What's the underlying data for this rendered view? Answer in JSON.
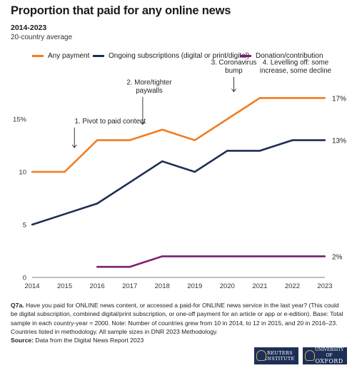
{
  "title": "Proportion that paid for any online news",
  "subtitle": "2014-2023",
  "subsubtitle": "20-country average",
  "legend": [
    {
      "label": "Any payment",
      "color": "#f07d22"
    },
    {
      "label": "Ongoing subscriptions (digital or print/digital)",
      "color": "#1d2f55"
    },
    {
      "label": "Donation/contribution",
      "color": "#7b1f6e"
    }
  ],
  "chart_data": {
    "type": "line",
    "x": [
      2014,
      2015,
      2016,
      2017,
      2018,
      2019,
      2020,
      2021,
      2022,
      2023
    ],
    "series": [
      {
        "name": "Any payment",
        "color": "#f07d22",
        "values": [
          10,
          10,
          13,
          13,
          14,
          13,
          15,
          17,
          17,
          17
        ],
        "end_label": "17%"
      },
      {
        "name": "Ongoing subscriptions (digital or print/digital)",
        "color": "#1d2f55",
        "values": [
          5,
          6,
          7,
          9,
          11,
          10,
          12,
          12,
          13,
          13
        ],
        "end_label": "13%"
      },
      {
        "name": "Donation/contribution",
        "color": "#7b1f6e",
        "values": [
          null,
          null,
          1,
          1,
          2,
          2,
          2,
          2,
          2,
          2
        ],
        "end_label": "2%"
      }
    ],
    "y_ticks": [
      {
        "value": 0,
        "label": "0"
      },
      {
        "value": 5,
        "label": "5"
      },
      {
        "value": 10,
        "label": "10"
      },
      {
        "value": 15,
        "label": "15%"
      }
    ],
    "x_tick_labels": [
      "2014",
      "2015",
      "2016",
      "2017",
      "2018",
      "2019",
      "2020",
      "2021",
      "2022",
      "2023"
    ],
    "ylim": [
      0,
      18
    ],
    "grid": false,
    "annotations": [
      {
        "lines": [
          "1. Pivot to paid content"
        ],
        "x": 2016.4,
        "y": 14.6,
        "arrow_to": [
          2015.3,
          12.3
        ]
      },
      {
        "lines": [
          "2. More/tighter",
          "paywalls"
        ],
        "x": 2017.6,
        "y": 17.5,
        "arrow_to": [
          2017.4,
          14.5
        ]
      },
      {
        "lines": [
          "3. Coronavirus",
          "bump"
        ],
        "x": 2020.2,
        "y": 19.4,
        "arrow_to": [
          2020.2,
          17.6
        ]
      },
      {
        "lines": [
          "4. Levelling off: some",
          "increase, some decline"
        ],
        "x": 2022.1,
        "y": 19.4,
        "arrow_to": null
      }
    ]
  },
  "note": {
    "label": "Q7a.",
    "text": "Have you paid for ONLINE news content, or accessed a paid-for ONLINE news service in the last year? (This could be digital subscription, combined digital/print subscription, or one-off payment for an article or app or e-edition). Base: Total sample in each country-year ≈ 2000. Note: Number of countries grew from 10 in 2014, to 12 in 2015, and 20 in 2016–23. Countries listed in methodology. All sample sizes in DNR 2023 Methodology."
  },
  "source": {
    "label": "Source:",
    "text": "Data from the Digital News Report 2023"
  },
  "logos": {
    "reuters_line1": "REUTERS",
    "reuters_line2": "INSTITUTE",
    "oxford_line1": "UNIVERSITY OF",
    "oxford_line2": "OXFORD"
  }
}
